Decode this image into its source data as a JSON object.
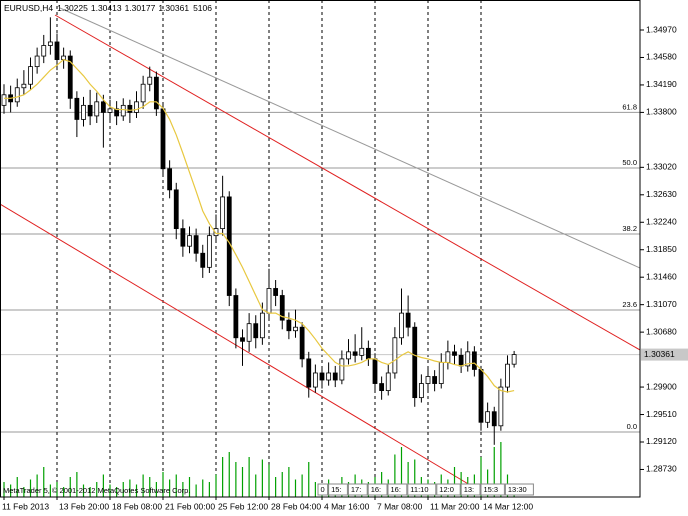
{
  "chart_data": {
    "type": "candlestick",
    "title": "EURUSD,H4",
    "categories": [
      "11 Feb 2013",
      null,
      null,
      null,
      null,
      null,
      null,
      null,
      "13 Feb 20:00",
      null,
      null,
      null,
      null,
      null,
      null,
      null,
      "18 Feb 08:00",
      null,
      null,
      null,
      null,
      null,
      null,
      null,
      "21 Feb 00:00",
      null,
      null,
      null,
      null,
      null,
      null,
      null,
      "25 Feb 12:00",
      null,
      null,
      null,
      null,
      null,
      null,
      null,
      "28 Feb 04:00",
      null,
      null,
      null,
      null,
      null,
      null,
      null,
      "4 Mar 16:00",
      null,
      null,
      null,
      null,
      null,
      null,
      null,
      "7 Mar 08:00",
      null,
      null,
      null,
      null,
      null,
      null,
      null,
      "11 Mar 20:00",
      null,
      null,
      null,
      null,
      null,
      null,
      null,
      "14 Mar 12:00",
      null,
      null,
      null,
      null,
      null
    ],
    "open": [
      1.339,
      1.3405,
      1.3395,
      1.3415,
      1.342,
      1.3445,
      1.346,
      1.3475,
      1.348,
      1.3455,
      1.346,
      1.34,
      1.337,
      1.339,
      1.3375,
      1.3395,
      1.338,
      1.3385,
      1.3375,
      1.339,
      1.338,
      1.3395,
      1.342,
      1.343,
      1.3385,
      1.33,
      1.327,
      1.3215,
      1.319,
      1.3205,
      1.318,
      1.316,
      1.3205,
      1.3215,
      1.326,
      1.312,
      1.306,
      1.3055,
      1.308,
      1.306,
      1.3095,
      1.313,
      1.312,
      1.3085,
      1.307,
      1.3075,
      1.303,
      1.299,
      1.301,
      1.3,
      1.301,
      1.3,
      1.303,
      1.304,
      1.3035,
      1.3045,
      1.303,
      1.2995,
      1.2985,
      1.301,
      1.306,
      1.3095,
      1.3075,
      1.2975,
      1.2995,
      1.3005,
      1.2995,
      1.3025,
      1.304,
      1.3035,
      1.302,
      1.304,
      1.3015,
      1.294,
      1.2955,
      1.2935,
      1.299,
      1.30225
    ],
    "high": [
      1.342,
      1.3418,
      1.3428,
      1.344,
      1.3458,
      1.3472,
      1.349,
      1.3515,
      1.3492,
      1.3472,
      1.3468,
      1.341,
      1.3402,
      1.3412,
      1.3408,
      1.3405,
      1.3398,
      1.3396,
      1.34,
      1.3398,
      1.341,
      1.3432,
      1.3445,
      1.3438,
      1.3392,
      1.3312,
      1.328,
      1.3228,
      1.3218,
      1.3215,
      1.3192,
      1.3218,
      1.3235,
      1.329,
      1.3268,
      1.313,
      1.3072,
      1.3095,
      1.3092,
      1.311,
      1.3158,
      1.3142,
      1.3128,
      1.3096,
      1.31,
      1.3082,
      1.304,
      1.3022,
      1.3018,
      1.3025,
      1.302,
      1.3042,
      1.3058,
      1.3065,
      1.3075,
      1.3056,
      1.3038,
      1.3005,
      1.3022,
      1.3075,
      1.313,
      1.312,
      1.3082,
      1.3008,
      1.3018,
      1.3014,
      1.3038,
      1.3056,
      1.305,
      1.3045,
      1.3055,
      1.3048,
      1.302,
      1.2968,
      1.2962,
      1.3002,
      1.3035,
      1.30413
    ],
    "low": [
      1.3378,
      1.338,
      1.3388,
      1.3405,
      1.3412,
      1.3435,
      1.345,
      1.3462,
      1.344,
      1.3442,
      1.3385,
      1.3345,
      1.336,
      1.3362,
      1.3365,
      1.333,
      1.3368,
      1.3362,
      1.3368,
      1.3365,
      1.3372,
      1.3385,
      1.341,
      1.3375,
      1.329,
      1.3258,
      1.32,
      1.3175,
      1.318,
      1.3168,
      1.3145,
      1.3152,
      1.3195,
      1.3205,
      1.3105,
      1.3045,
      1.302,
      1.304,
      1.3045,
      1.305,
      1.3085,
      1.3105,
      1.3072,
      1.3058,
      1.306,
      1.3018,
      1.2975,
      1.2982,
      1.2988,
      1.2992,
      1.299,
      1.2994,
      1.3022,
      1.3025,
      1.3028,
      1.302,
      1.2985,
      1.2972,
      1.2978,
      1.3002,
      1.305,
      1.3062,
      1.2962,
      1.2968,
      1.2985,
      1.2984,
      1.2988,
      1.3015,
      1.3022,
      1.301,
      1.3012,
      1.3005,
      1.2928,
      1.2932,
      1.2908,
      1.2928,
      1.2982,
      1.30177
    ],
    "close": [
      1.3405,
      1.3395,
      1.3415,
      1.342,
      1.3445,
      1.346,
      1.3475,
      1.348,
      1.3455,
      1.346,
      1.34,
      1.337,
      1.339,
      1.3375,
      1.3395,
      1.338,
      1.3385,
      1.3375,
      1.339,
      1.338,
      1.3395,
      1.342,
      1.343,
      1.3385,
      1.33,
      1.327,
      1.3215,
      1.319,
      1.3205,
      1.318,
      1.316,
      1.3205,
      1.3215,
      1.326,
      1.312,
      1.306,
      1.3055,
      1.308,
      1.306,
      1.3095,
      1.313,
      1.312,
      1.3085,
      1.307,
      1.3075,
      1.303,
      1.299,
      1.301,
      1.3,
      1.301,
      1.3,
      1.303,
      1.304,
      1.3035,
      1.3045,
      1.303,
      1.2995,
      1.2985,
      1.301,
      1.306,
      1.3095,
      1.3075,
      1.2975,
      1.2995,
      1.3005,
      1.2995,
      1.3025,
      1.304,
      1.3035,
      1.302,
      1.304,
      1.3015,
      1.294,
      1.2955,
      1.2935,
      1.299,
      1.30225,
      1.30361
    ],
    "volume": [
      6000,
      5000,
      8000,
      4000,
      7000,
      9000,
      12000,
      5000,
      6000,
      4000,
      8000,
      10000,
      5000,
      4000,
      6000,
      9000,
      5000,
      4000,
      6000,
      7000,
      5000,
      9000,
      8000,
      6000,
      10000,
      7000,
      9000,
      6000,
      8000,
      5000,
      7000,
      6000,
      9000,
      16000,
      18000,
      14000,
      12000,
      16000,
      9000,
      15000,
      13000,
      8000,
      10000,
      12000,
      7000,
      9000,
      14000,
      6000,
      5000,
      7000,
      5000,
      8000,
      6000,
      9000,
      7000,
      6000,
      8000,
      10000,
      7000,
      17000,
      20000,
      14000,
      15000,
      8000,
      7000,
      6000,
      9000,
      7000,
      12000,
      10000,
      8000,
      9000,
      16000,
      11000,
      20000,
      22000,
      9000,
      5106
    ],
    "volume_color": "#00a000",
    "ma": [
      1.34,
      1.34,
      1.3402,
      1.3405,
      1.3412,
      1.342,
      1.343,
      1.344,
      1.3447,
      1.3455,
      1.3452,
      1.3442,
      1.3432,
      1.342,
      1.341,
      1.3398,
      1.3388,
      1.3384,
      1.3384,
      1.3383,
      1.3384,
      1.3388,
      1.3395,
      1.3395,
      1.3386,
      1.337,
      1.3348,
      1.3322,
      1.3295,
      1.3268,
      1.324,
      1.3222,
      1.3208,
      1.3208,
      1.3195,
      1.3178,
      1.316,
      1.314,
      1.312,
      1.31,
      1.3095,
      1.3095,
      1.309,
      1.3088,
      1.3085,
      1.308,
      1.307,
      1.3058,
      1.3045,
      1.3035,
      1.3025,
      1.302,
      1.302,
      1.3022,
      1.3025,
      1.303,
      1.303,
      1.3025,
      1.3022,
      1.3028,
      1.3035,
      1.304,
      1.3035,
      1.3032,
      1.303,
      1.3027,
      1.3025,
      1.3025,
      1.3022,
      1.302,
      1.3023,
      1.3024,
      1.3015,
      1.3005,
      1.2992,
      1.2985,
      1.2983,
      1.2985
    ],
    "ma_color": "#e8c840",
    "ylim": [
      1.28339,
      1.35396
    ],
    "yticks": [
      {
        "value": 1.3497,
        "label": "1.34970"
      },
      {
        "value": 1.3458,
        "label": "1.34580"
      },
      {
        "value": 1.3419,
        "label": "1.34190"
      },
      {
        "value": 1.338,
        "label": "1.33800"
      },
      {
        "value": 1.3302,
        "label": "1.33020"
      },
      {
        "value": 1.3263,
        "label": "1.32630"
      },
      {
        "value": 1.3224,
        "label": "1.32240"
      },
      {
        "value": 1.3185,
        "label": "1.31850"
      },
      {
        "value": 1.3146,
        "label": "1.31460"
      },
      {
        "value": 1.3107,
        "label": "1.31070"
      },
      {
        "value": 1.3068,
        "label": "1.30680"
      },
      {
        "value": 1.299,
        "label": "1.29900"
      },
      {
        "value": 1.2951,
        "label": "1.29510"
      },
      {
        "value": 1.2912,
        "label": "1.29120"
      },
      {
        "value": 1.2873,
        "label": "1.28730"
      }
    ],
    "fib_levels": [
      {
        "value": 1.338,
        "label": "61.8"
      },
      {
        "value": 1.3301,
        "label": "50.0"
      },
      {
        "value": 1.32073,
        "label": "38.2"
      },
      {
        "value": 1.30994,
        "label": "23.6"
      },
      {
        "value": 1.29262,
        "label": "0.0"
      }
    ],
    "watermark": "MetaTrader 5, © 2001-2012 MetaQuotes Software Corp.",
    "time_boxes": [
      "0",
      "15:",
      "17:",
      "16:",
      "16:",
      "11:10",
      "12:0",
      "13:",
      "15:3",
      "13:30"
    ]
  }
}
